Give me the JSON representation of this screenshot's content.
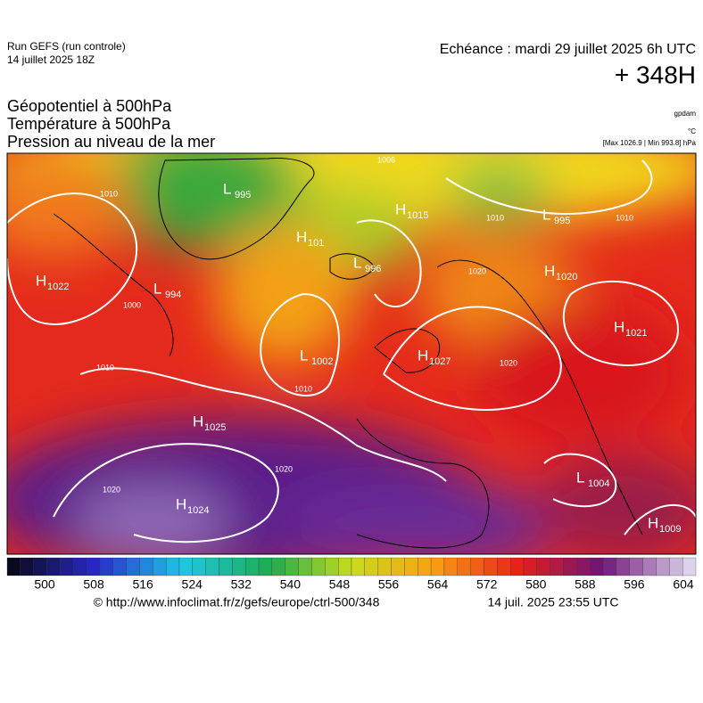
{
  "header": {
    "run": "Run GEFS (run controle)",
    "run_date": "14 juillet 2025 18Z",
    "echeance": "Echéance : mardi 29 juillet 2025 6h UTC",
    "lead": "+ 348H"
  },
  "titles": [
    "Géopotentiel à 500hPa",
    "Température à 500hPa",
    "Pression au niveau de la mer"
  ],
  "units": {
    "geopotential": "gpdam",
    "temperature": "°C",
    "pressure": "[Max 1026.9 | Min 993.8] hPa"
  },
  "centers": [
    {
      "type": "H",
      "value": 1022
    },
    {
      "type": "L",
      "value": 994
    },
    {
      "type": "L",
      "value": 995
    },
    {
      "type": "H",
      "value": 101
    },
    {
      "type": "L",
      "value": 996
    },
    {
      "type": "H",
      "value": 1015
    },
    {
      "type": "L",
      "value": 995
    },
    {
      "type": "H",
      "value": 1020
    },
    {
      "type": "H",
      "value": 1021
    },
    {
      "type": "L",
      "value": 1002
    },
    {
      "type": "H",
      "value": 1027
    },
    {
      "type": "H",
      "value": 1025
    },
    {
      "type": "H",
      "value": 1024
    },
    {
      "type": "L",
      "value": 1004
    },
    {
      "type": "H",
      "value": 1009
    }
  ],
  "contour_labels": [
    1010,
    1006,
    1010,
    1010,
    1020,
    1020,
    1010,
    1020,
    1020,
    1010,
    1000
  ],
  "colorbar": {
    "ticks": [
      500,
      508,
      516,
      524,
      532,
      540,
      548,
      556,
      564,
      572,
      580,
      588,
      596,
      604
    ]
  },
  "footer": {
    "url": "© http://www.infoclimat.fr/z/gefs/europe/ctrl-500/348",
    "timestamp": "14 juil. 2025 23:55 UTC"
  }
}
